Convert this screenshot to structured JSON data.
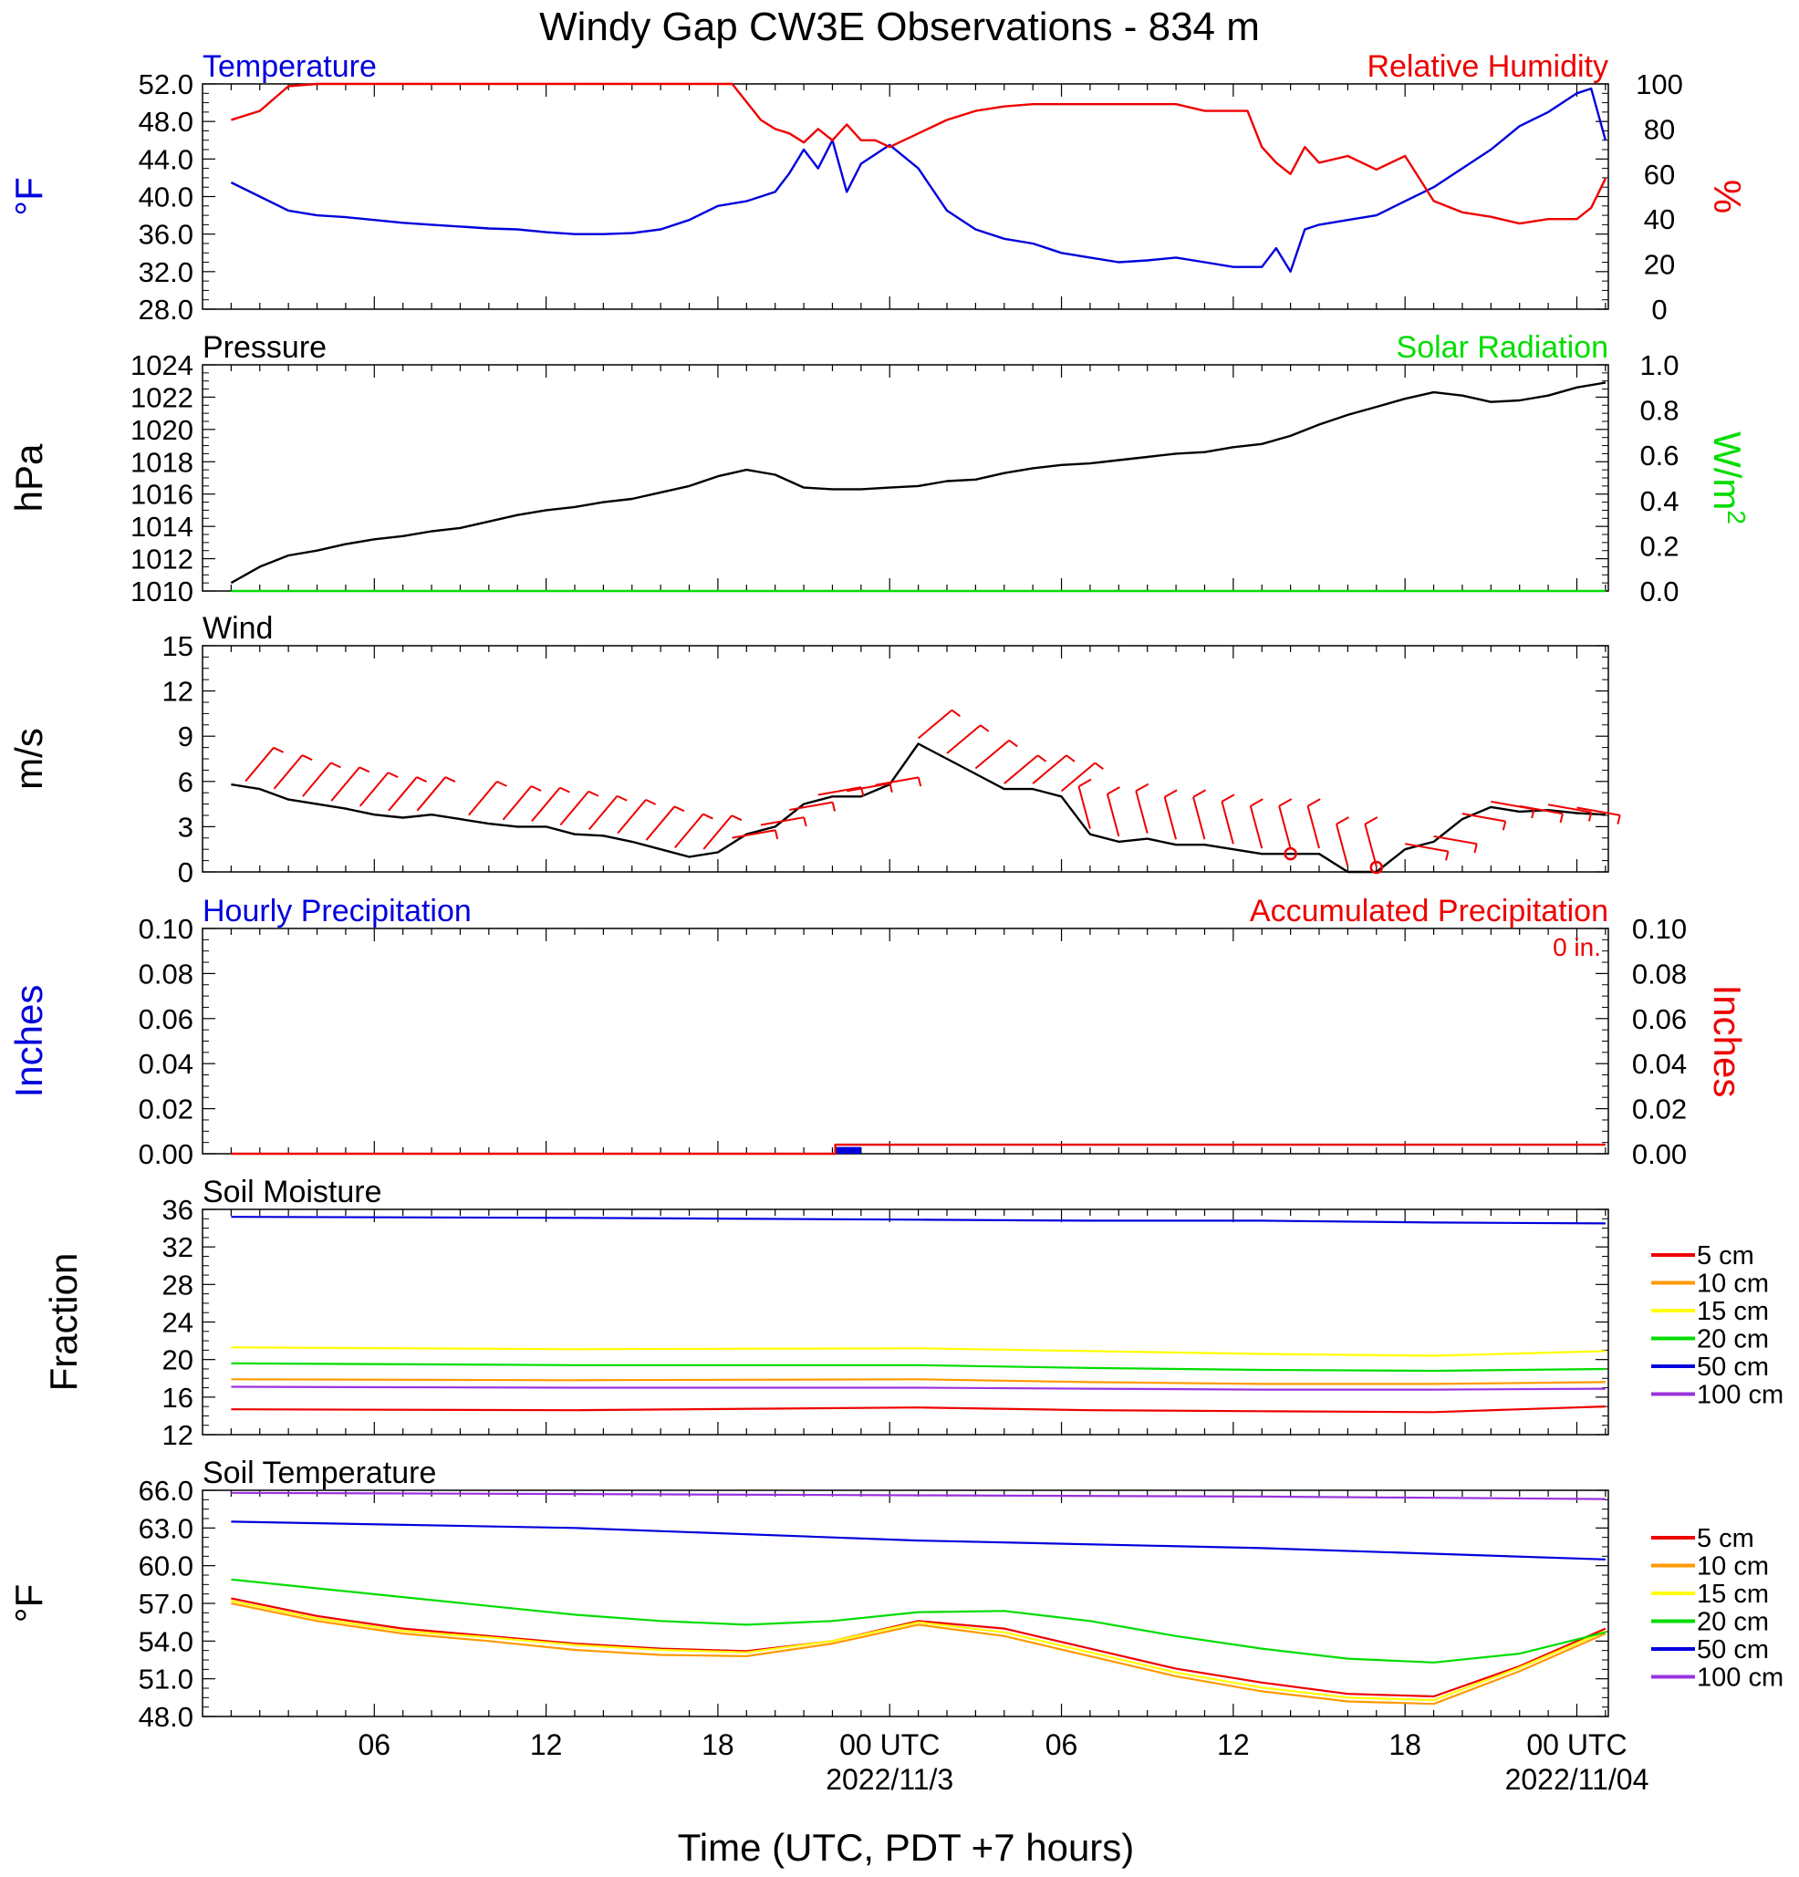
{
  "title": "Windy Gap CW3E Observations - 834 m",
  "x_axis": {
    "label": "Time (UTC, PDT +7 hours)",
    "ticks": [
      {
        "hour": 5,
        "label": "06",
        "date": ""
      },
      {
        "hour": 11,
        "label": "12",
        "date": ""
      },
      {
        "hour": 17,
        "label": "18",
        "date": ""
      },
      {
        "hour": 23,
        "label": "00 UTC",
        "date": "2022/11/3"
      },
      {
        "hour": 29,
        "label": "06",
        "date": ""
      },
      {
        "hour": 35,
        "label": "12",
        "date": ""
      },
      {
        "hour": 41,
        "label": "18",
        "date": ""
      },
      {
        "hour": 47,
        "label": "00 UTC",
        "date": "2022/11/04"
      }
    ]
  },
  "colors": {
    "blue": "#0000dd",
    "red": "#ee0000",
    "green": "#00dd00",
    "black": "#000000",
    "orange": "#ff9900",
    "yellow": "#ffff00",
    "purple": "#9933dd"
  },
  "chart_data": [
    {
      "type": "line",
      "left_title": "Temperature",
      "right_title": "Relative Humidity",
      "ylabel_left": "°F",
      "ylabel_right": "%",
      "ylim_left": [
        28,
        52
      ],
      "ylim_right": [
        0,
        100
      ],
      "yticks_left": [
        "52.0",
        "48.0",
        "44.0",
        "40.0",
        "36.0",
        "32.0",
        "28.0"
      ],
      "yticks_right": [
        "100",
        "80",
        "60",
        "40",
        "20",
        "0"
      ],
      "series": [
        {
          "name": "Temperature",
          "axis": "left",
          "color": "#0000dd",
          "x": [
            0,
            1,
            2,
            3,
            4,
            5,
            6,
            7,
            8,
            9,
            10,
            11,
            12,
            13,
            14,
            15,
            16,
            17,
            18,
            19,
            19.5,
            20,
            20.5,
            21,
            21.5,
            22,
            22.5,
            23,
            24,
            25,
            26,
            27,
            28,
            29,
            30,
            31,
            32,
            33,
            34,
            35,
            36,
            36.5,
            37,
            37.5,
            38,
            39,
            40,
            41,
            42,
            43,
            44,
            45,
            46,
            47,
            47.5,
            48
          ],
          "y": [
            41.5,
            40,
            38.5,
            38,
            37.8,
            37.5,
            37.2,
            37,
            36.8,
            36.6,
            36.5,
            36.2,
            36,
            36,
            36.1,
            36.5,
            37.5,
            39,
            39.5,
            40.5,
            42.5,
            45,
            43,
            46,
            40.5,
            43.5,
            44.5,
            45.5,
            43,
            38.5,
            36.5,
            35.5,
            35,
            34,
            33.5,
            33,
            33.2,
            33.5,
            33,
            32.5,
            32.5,
            34.5,
            32,
            36.5,
            37,
            37.5,
            38,
            39.5,
            41,
            43,
            45,
            47.5,
            49,
            51,
            51.5,
            46
          ]
        },
        {
          "name": "Relative Humidity",
          "axis": "right",
          "color": "#ee0000",
          "x": [
            0,
            1,
            2,
            3,
            4,
            5,
            6,
            7,
            8,
            9,
            10,
            11,
            12,
            13,
            14,
            15,
            16,
            17,
            17.5,
            18,
            18.5,
            19,
            19.5,
            20,
            20.5,
            21,
            21.5,
            22,
            22.5,
            23,
            24,
            25,
            26,
            27,
            28,
            29,
            30,
            31,
            32,
            33,
            34,
            35,
            35.5,
            36,
            36.5,
            37,
            37.5,
            38,
            39,
            40,
            41,
            42,
            43,
            44,
            45,
            46,
            47,
            47.5,
            48
          ],
          "y": [
            84,
            88,
            99,
            100,
            100,
            100,
            100,
            100,
            100,
            100,
            100,
            100,
            100,
            100,
            100,
            100,
            100,
            100,
            100,
            92,
            84,
            80,
            78,
            74,
            80,
            75,
            82,
            75,
            75,
            72,
            78,
            84,
            88,
            90,
            91,
            91,
            91,
            91,
            91,
            91,
            88,
            88,
            88,
            72,
            65,
            60,
            72,
            65,
            68,
            62,
            68,
            48,
            43,
            41,
            38,
            40,
            40,
            45,
            58
          ]
        }
      ]
    },
    {
      "type": "line",
      "left_title": "Pressure",
      "right_title": "Solar Radiation",
      "ylabel_left": "hPa",
      "ylabel_right": "W/m",
      "ylabel_right_sup": "2",
      "ylim_left": [
        1010,
        1024
      ],
      "ylim_right": [
        0,
        1
      ],
      "yticks_left": [
        "1024",
        "1022",
        "1020",
        "1018",
        "1016",
        "1014",
        "1012",
        "1010"
      ],
      "yticks_right": [
        "1.0",
        "0.8",
        "0.6",
        "0.4",
        "0.2",
        "0.0"
      ],
      "series": [
        {
          "name": "Pressure",
          "axis": "left",
          "color": "#000000",
          "x": [
            0,
            1,
            2,
            3,
            4,
            5,
            6,
            7,
            8,
            9,
            10,
            11,
            12,
            13,
            14,
            15,
            16,
            17,
            18,
            19,
            20,
            21,
            22,
            23,
            24,
            25,
            26,
            27,
            28,
            29,
            30,
            31,
            32,
            33,
            34,
            35,
            36,
            37,
            38,
            39,
            40,
            41,
            42,
            43,
            44,
            45,
            46,
            47,
            48
          ],
          "y": [
            1010.5,
            1011.5,
            1012.2,
            1012.5,
            1012.9,
            1013.2,
            1013.4,
            1013.7,
            1013.9,
            1014.3,
            1014.7,
            1015,
            1015.2,
            1015.5,
            1015.7,
            1016.1,
            1016.5,
            1017.1,
            1017.5,
            1017.2,
            1016.4,
            1016.3,
            1016.3,
            1016.4,
            1016.5,
            1016.8,
            1016.9,
            1017.3,
            1017.6,
            1017.8,
            1017.9,
            1018.1,
            1018.3,
            1018.5,
            1018.6,
            1018.9,
            1019.1,
            1019.6,
            1020.3,
            1020.9,
            1021.4,
            1021.9,
            1022.3,
            1022.1,
            1021.7,
            1021.8,
            1022.1,
            1022.6,
            1022.9
          ]
        },
        {
          "name": "Solar Radiation",
          "axis": "right",
          "color": "#00dd00",
          "x": [
            0,
            48
          ],
          "y": [
            0,
            0
          ]
        }
      ]
    },
    {
      "type": "line",
      "left_title": "Wind",
      "right_title": "",
      "ylabel_left": "m/s",
      "ylabel_right": "",
      "ylim_left": [
        0,
        15
      ],
      "yticks_left": [
        "15",
        "12",
        "9",
        "6",
        "3",
        "0"
      ],
      "yticks_right": [],
      "series": [
        {
          "name": "Wind",
          "axis": "left",
          "color": "#000000",
          "x": [
            0,
            1,
            2,
            3,
            4,
            5,
            6,
            7,
            8,
            9,
            10,
            11,
            12,
            13,
            14,
            15,
            16,
            17,
            18,
            19,
            20,
            21,
            22,
            23,
            24,
            25,
            26,
            27,
            28,
            29,
            30,
            31,
            32,
            33,
            34,
            35,
            36,
            37,
            38,
            39,
            40,
            41,
            42,
            43,
            44,
            45,
            46,
            47,
            48
          ],
          "y": [
            5.8,
            5.5,
            4.8,
            4.5,
            4.2,
            3.8,
            3.6,
            3.8,
            3.5,
            3.2,
            3,
            3,
            2.5,
            2.4,
            2,
            1.5,
            1,
            1.3,
            2.5,
            3,
            4.5,
            5,
            5,
            5.8,
            8.5,
            7.5,
            6.5,
            5.5,
            5.5,
            5,
            2.5,
            2,
            2.2,
            1.8,
            1.8,
            1.5,
            1.2,
            1.2,
            1.2,
            0,
            0,
            1.5,
            2,
            3.5,
            4.3,
            4,
            4.1,
            3.9,
            3.8
          ]
        }
      ],
      "barbs_x": [
        0.5,
        1.5,
        2.5,
        3.5,
        4.5,
        5.5,
        6.5,
        8.3,
        9.5,
        10.5,
        11.5,
        12.5,
        13.5,
        14.5,
        15.5,
        16.5,
        17.5,
        18.5,
        19.5,
        20.5,
        21.5,
        22.5,
        24,
        25,
        26,
        27,
        28,
        29,
        30,
        31,
        32,
        33,
        34,
        35,
        36,
        37,
        38,
        39,
        40,
        41,
        42,
        43,
        44,
        45,
        46,
        47
      ],
      "calm_x": [
        37,
        40
      ]
    },
    {
      "type": "line",
      "left_title": "Hourly Precipitation",
      "right_title": "Accumulated Precipitation",
      "annotation": "0 in.",
      "ylabel_left": "Inches",
      "ylabel_right": "Inches",
      "ylim_left": [
        0,
        0.1
      ],
      "ylim_right": [
        0,
        0.1
      ],
      "yticks_left": [
        "0.10",
        "0.08",
        "0.06",
        "0.04",
        "0.02",
        "0.00"
      ],
      "yticks_right": [
        "0.10",
        "0.08",
        "0.06",
        "0.04",
        "0.02",
        "0.00"
      ],
      "series": [
        {
          "name": "Hourly Precipitation",
          "axis": "left",
          "color": "#0000dd",
          "bars": [
            {
              "x0": 21.1,
              "x1": 22.0,
              "value": 0.003
            }
          ]
        },
        {
          "name": "Accumulated Precipitation",
          "axis": "right",
          "color": "#ee0000",
          "x": [
            0,
            21.1,
            21.1,
            48
          ],
          "y": [
            0,
            0,
            0.004,
            0.004
          ]
        }
      ]
    },
    {
      "type": "line",
      "left_title": "Soil Moisture",
      "right_title": "",
      "ylabel_left": "Fraction",
      "ylabel_right": "",
      "ylim_left": [
        12,
        36
      ],
      "yticks_left": [
        "36",
        "32",
        "28",
        "24",
        "20",
        "16",
        "12"
      ],
      "yticks_right": [],
      "gaps": [
        [
          6.2,
          7.0
        ],
        [
          24.2,
          25.0
        ]
      ],
      "legend": [
        "5 cm",
        "10 cm",
        "15 cm",
        "20 cm",
        "50 cm",
        "100 cm"
      ],
      "series": [
        {
          "name": "5 cm",
          "color": "#ee0000",
          "x": [
            0,
            12,
            24,
            30,
            36,
            42,
            48
          ],
          "y": [
            14.7,
            14.6,
            14.9,
            14.6,
            14.5,
            14.4,
            15.0
          ]
        },
        {
          "name": "10 cm",
          "color": "#ff9900",
          "x": [
            0,
            12,
            24,
            30,
            36,
            42,
            48
          ],
          "y": [
            17.9,
            17.8,
            17.9,
            17.6,
            17.4,
            17.4,
            17.6
          ]
        },
        {
          "name": "15 cm",
          "color": "#ffff00",
          "x": [
            0,
            12,
            24,
            30,
            36,
            42,
            48
          ],
          "y": [
            21.3,
            21.1,
            21.2,
            20.9,
            20.6,
            20.4,
            20.9
          ]
        },
        {
          "name": "20 cm",
          "color": "#00dd00",
          "x": [
            0,
            12,
            24,
            30,
            36,
            42,
            48
          ],
          "y": [
            19.6,
            19.4,
            19.4,
            19.1,
            18.9,
            18.8,
            19.0
          ]
        },
        {
          "name": "50 cm",
          "color": "#0000dd",
          "x": [
            0,
            12,
            24,
            30,
            36,
            42,
            48
          ],
          "y": [
            35.2,
            35.1,
            34.9,
            34.8,
            34.8,
            34.6,
            34.5
          ]
        },
        {
          "name": "100 cm",
          "color": "#9933dd",
          "x": [
            0,
            12,
            24,
            30,
            36,
            42,
            48
          ],
          "y": [
            17.1,
            17.0,
            17.0,
            16.9,
            16.8,
            16.8,
            16.9
          ]
        }
      ]
    },
    {
      "type": "line",
      "left_title": "Soil Temperature",
      "right_title": "",
      "ylabel_left": "°F",
      "ylabel_right": "",
      "ylim_left": [
        48,
        66
      ],
      "yticks_left": [
        "66.0",
        "63.0",
        "60.0",
        "57.0",
        "54.0",
        "51.0",
        "48.0"
      ],
      "yticks_right": [],
      "legend": [
        "5 cm",
        "10 cm",
        "15 cm",
        "20 cm",
        "50 cm",
        "100 cm"
      ],
      "series": [
        {
          "name": "5 cm",
          "color": "#ee0000",
          "x": [
            0,
            3,
            6,
            9,
            12,
            15,
            18,
            21,
            24,
            27,
            30,
            33,
            36,
            39,
            42,
            45,
            48
          ],
          "y": [
            57.4,
            56.0,
            55.0,
            54.4,
            53.8,
            53.4,
            53.2,
            54.0,
            55.6,
            55.0,
            53.4,
            51.8,
            50.7,
            49.8,
            49.6,
            52.0,
            55.0
          ]
        },
        {
          "name": "10 cm",
          "color": "#ff9900",
          "x": [
            0,
            3,
            6,
            9,
            12,
            15,
            18,
            21,
            24,
            27,
            30,
            33,
            36,
            39,
            42,
            45,
            48
          ],
          "y": [
            57.0,
            55.6,
            54.6,
            54.0,
            53.3,
            52.9,
            52.8,
            53.8,
            55.3,
            54.4,
            52.8,
            51.2,
            50.0,
            49.2,
            49.0,
            51.6,
            54.6
          ]
        },
        {
          "name": "15 cm",
          "color": "#ffff00",
          "x": [
            0,
            3,
            6,
            9,
            12,
            15,
            18,
            21,
            24,
            27,
            30,
            33,
            36,
            39,
            42,
            45,
            48
          ],
          "y": [
            57.2,
            55.8,
            54.8,
            54.3,
            53.7,
            53.3,
            53.1,
            54.0,
            55.5,
            54.7,
            53.1,
            51.5,
            50.3,
            49.5,
            49.3,
            51.9,
            54.8
          ]
        },
        {
          "name": "20 cm",
          "color": "#00dd00",
          "x": [
            0,
            3,
            6,
            9,
            12,
            15,
            18,
            21,
            24,
            27,
            30,
            33,
            36,
            39,
            42,
            45,
            48
          ],
          "y": [
            58.9,
            58.2,
            57.5,
            56.8,
            56.1,
            55.6,
            55.3,
            55.6,
            56.3,
            56.4,
            55.6,
            54.4,
            53.4,
            52.6,
            52.3,
            53.0,
            54.7
          ]
        },
        {
          "name": "50 cm",
          "color": "#0000dd",
          "x": [
            0,
            12,
            24,
            36,
            48
          ],
          "y": [
            63.5,
            63.0,
            62.0,
            61.4,
            60.5
          ]
        },
        {
          "name": "100 cm",
          "color": "#9933dd",
          "x": [
            0,
            12,
            24,
            36,
            48
          ],
          "y": [
            65.8,
            65.7,
            65.6,
            65.5,
            65.3
          ]
        }
      ]
    }
  ]
}
